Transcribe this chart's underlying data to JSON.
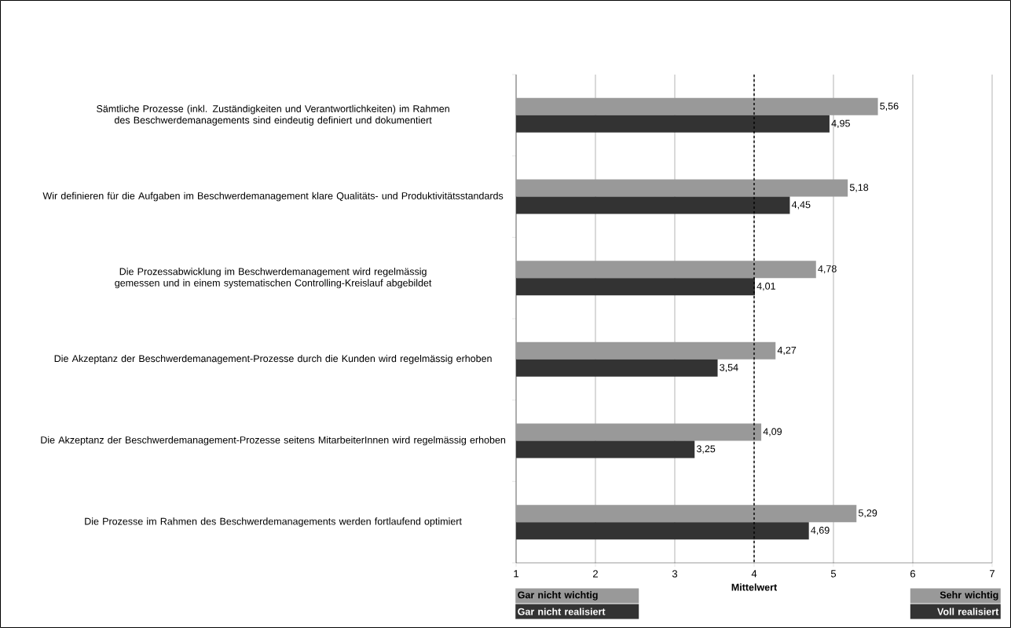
{
  "chart_data": {
    "type": "bar",
    "orientation": "horizontal",
    "xlabel": "Mittelwert",
    "categories": [
      "Sämtliche Prozesse (inkl. Zuständigkeiten und Verantwortlichkeiten) im Rahmen des Beschwerdemanagements sind eindeutig definiert und dokumentiert",
      "Wir definieren für die Aufgaben im Beschwerdemanagement klare Qualitäts- und Produktivitätsstandards",
      "Die Prozessabwicklung im Beschwerdemanagement wird regelmässig gemessen und in einem systematischen Controlling-Kreislauf abgebildet",
      "Die Akzeptanz der Beschwerdemanagement-Prozesse durch die Kunden wird regelmässig erhoben",
      "Die Akzeptanz der Beschwerdemanagement-Prozesse seitens MitarbeiterInnen wird regelmässig erhoben",
      "Die Prozesse im Rahmen des Beschwerdemanagements werden fortlaufend optimiert"
    ],
    "series": [
      {
        "color": "#999999",
        "values": [
          5.56,
          5.18,
          4.78,
          4.27,
          4.09,
          5.29
        ],
        "value_labels": [
          "5,56",
          "5,18",
          "4,78",
          "4,27",
          "4,09",
          "5,29"
        ]
      },
      {
        "color": "#333333",
        "values": [
          4.95,
          4.45,
          4.01,
          3.54,
          3.25,
          4.69
        ],
        "value_labels": [
          "4,95",
          "4,45",
          "4,01",
          "3,54",
          "3,25",
          "4,69"
        ]
      }
    ],
    "xlim": [
      1,
      7
    ],
    "xticks": [
      1,
      2,
      3,
      4,
      5,
      6,
      7
    ],
    "grid": "x",
    "ref_lines": [
      {
        "axis": "x",
        "value": 4,
        "color": "#000000",
        "line_style": "dashed"
      }
    ],
    "annotations": [
      "Gar nicht wichtig",
      "Gar nicht realisiert",
      "Sehr wichtig",
      "Voll realisiert"
    ]
  }
}
